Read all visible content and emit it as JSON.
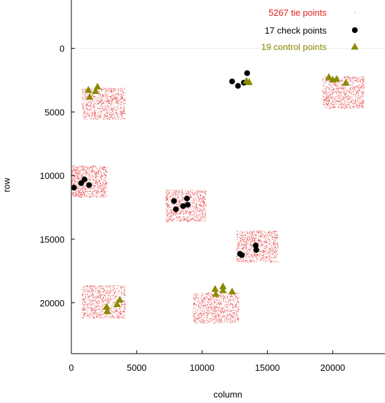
{
  "chart_data": {
    "type": "scatter",
    "xlabel": "column",
    "ylabel": "row",
    "xlim": [
      0,
      24000
    ],
    "ylim": [
      24000,
      -3800
    ],
    "y_inverted": true,
    "x_ticks": [
      0,
      5000,
      10000,
      15000,
      20000
    ],
    "y_ticks": [
      0,
      5000,
      10000,
      15000,
      20000
    ],
    "zero_line": true,
    "grid": false,
    "legend_position": "top-right",
    "series": [
      {
        "name": "5267 tie points",
        "marker": "dot",
        "color": "#e02020",
        "count": 5267,
        "regions": [
          {
            "xmin": 800,
            "xmax": 4100,
            "ymin": 3100,
            "ymax": 5600
          },
          {
            "xmin": 19200,
            "xmax": 22400,
            "ymin": 2200,
            "ymax": 4700
          },
          {
            "xmin": 0,
            "xmax": 2700,
            "ymin": 9200,
            "ymax": 11700
          },
          {
            "xmin": 7200,
            "xmax": 10300,
            "ymin": 11100,
            "ymax": 13600
          },
          {
            "xmin": 12600,
            "xmax": 15800,
            "ymin": 14300,
            "ymax": 16800
          },
          {
            "xmin": 800,
            "xmax": 4100,
            "ymin": 18600,
            "ymax": 21200
          },
          {
            "xmin": 9300,
            "xmax": 12800,
            "ymin": 19200,
            "ymax": 21600
          }
        ]
      },
      {
        "name": "17 check points",
        "marker": "circle",
        "color": "#000000",
        "points": [
          [
            12300,
            2600
          ],
          [
            12750,
            2950
          ],
          [
            13200,
            2700
          ],
          [
            13450,
            1950
          ],
          [
            200,
            10950
          ],
          [
            750,
            10600
          ],
          [
            1000,
            10300
          ],
          [
            1350,
            10750
          ],
          [
            7850,
            12000
          ],
          [
            8000,
            12650
          ],
          [
            8550,
            12400
          ],
          [
            8900,
            12300
          ],
          [
            8850,
            11800
          ],
          [
            13050,
            16250
          ],
          [
            14100,
            15500
          ],
          [
            14150,
            15850
          ],
          [
            12900,
            16150
          ]
        ]
      },
      {
        "name": "19 control points",
        "marker": "triangle",
        "color": "#8a8a00",
        "points": [
          [
            1300,
            3250
          ],
          [
            1400,
            3800
          ],
          [
            1850,
            3350
          ],
          [
            2000,
            3000
          ],
          [
            19700,
            2250
          ],
          [
            20000,
            2450
          ],
          [
            20300,
            2400
          ],
          [
            21000,
            2700
          ],
          [
            2700,
            20300
          ],
          [
            2750,
            20650
          ],
          [
            3500,
            20100
          ],
          [
            3700,
            19750
          ],
          [
            11000,
            18900
          ],
          [
            11050,
            19300
          ],
          [
            11600,
            18700
          ],
          [
            11600,
            19000
          ],
          [
            12300,
            19100
          ],
          [
            13400,
            2550
          ],
          [
            13600,
            2650
          ]
        ]
      }
    ]
  }
}
